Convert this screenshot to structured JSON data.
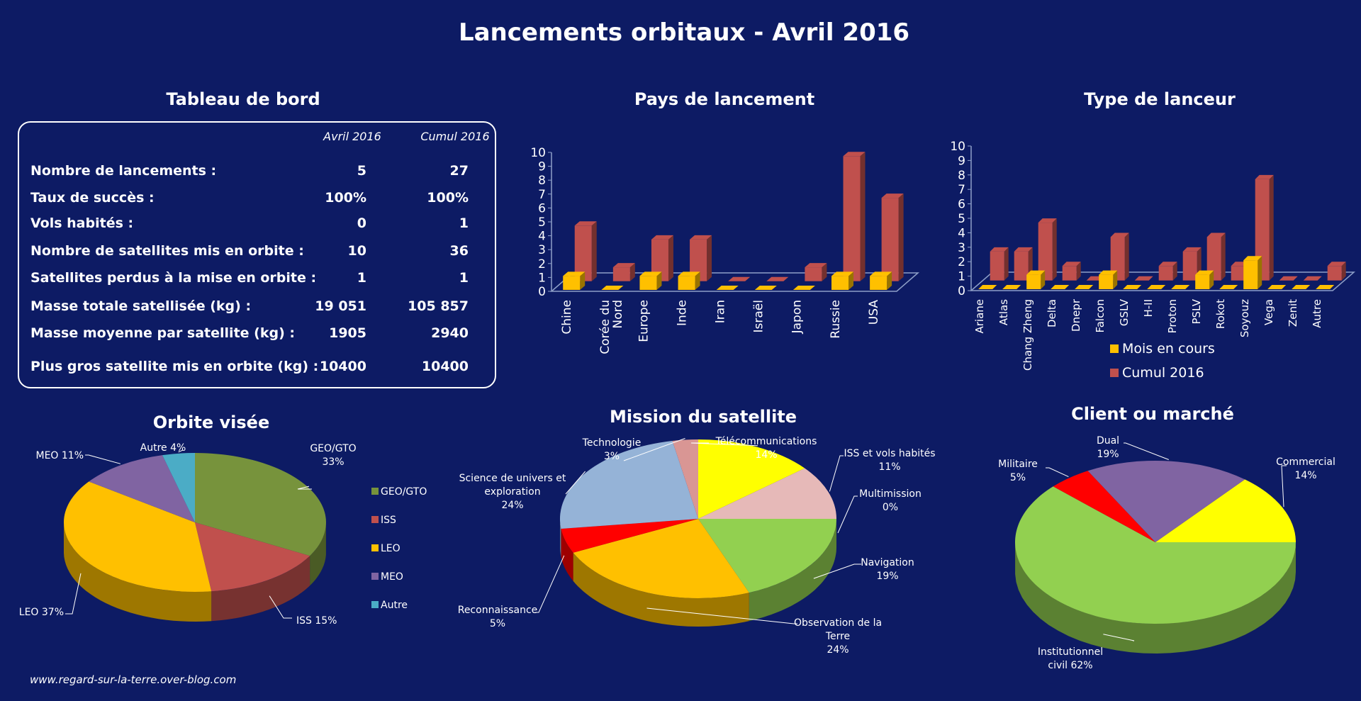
{
  "title": "Lancements orbitaux - Avril 2016",
  "footer": "www.regard-sur-la-terre.over-blog.com",
  "dashboard": {
    "title": "Tableau de bord",
    "col1": "Avril 2016",
    "col2": "Cumul 2016",
    "rows": [
      {
        "label": "Nombre de lancements :",
        "v1": "5",
        "v2": "27"
      },
      {
        "label": "Taux de succès :",
        "v1": "100%",
        "v2": "100%"
      },
      {
        "label": "Vols habités :",
        "v1": "0",
        "v2": "1"
      },
      {
        "label": "Nombre de satellites mis en orbite :",
        "v1": "10",
        "v2": "36"
      },
      {
        "label": "Satellites perdus à la mise en orbite :",
        "v1": "1",
        "v2": "1"
      },
      {
        "label": "Masse totale satellisée (kg) :",
        "v1": "19 051",
        "v2": "105 857"
      },
      {
        "label": "Masse moyenne par satellite (kg) :",
        "v1": "1905",
        "v2": "2940"
      },
      {
        "label": "Plus gros satellite mis en orbite (kg) :",
        "v1": "10400",
        "v2": "10400"
      }
    ]
  },
  "colors": {
    "background": "#0d1b64",
    "month": "#ffc000",
    "cumul": "#c0504d"
  },
  "chart_data": [
    {
      "id": "pays",
      "type": "bar",
      "title": "Pays de lancement",
      "categories": [
        "Chine",
        "Corée du Nord",
        "Europe",
        "Inde",
        "Iran",
        "Israël",
        "Japon",
        "Russie",
        "USA"
      ],
      "series": [
        {
          "name": "Mois en cours",
          "values": [
            1,
            0,
            1,
            1,
            0,
            0,
            0,
            1,
            1
          ]
        },
        {
          "name": "Cumul 2016",
          "values": [
            4,
            1,
            3,
            3,
            0,
            0,
            1,
            9,
            6
          ]
        }
      ],
      "ylim": [
        0,
        10
      ],
      "yticks": [
        "0",
        "1",
        "2",
        "3",
        "4",
        "5",
        "6",
        "7",
        "8",
        "9",
        "10"
      ]
    },
    {
      "id": "lanceur",
      "type": "bar",
      "title": "Type de lanceur",
      "categories": [
        "Ariane",
        "Atlas",
        "Chang Zheng",
        "Delta",
        "Dnepr",
        "Falcon",
        "GSLV",
        "H-II",
        "Proton",
        "PSLV",
        "Rokot",
        "Soyouz",
        "Vega",
        "Zenit",
        "Autre"
      ],
      "series": [
        {
          "name": "Mois en cours",
          "values": [
            0,
            0,
            1,
            0,
            0,
            1,
            0,
            0,
            0,
            1,
            0,
            2,
            0,
            0,
            0
          ]
        },
        {
          "name": "Cumul 2016",
          "values": [
            2,
            2,
            4,
            1,
            0,
            3,
            0,
            1,
            2,
            3,
            1,
            7,
            0,
            0,
            1
          ]
        }
      ],
      "ylim": [
        0,
        10
      ],
      "yticks": [
        "0",
        "1",
        "2",
        "3",
        "4",
        "5",
        "6",
        "7",
        "8",
        "9",
        "10"
      ],
      "legend": [
        "Mois en cours",
        "Cumul 2016"
      ]
    },
    {
      "id": "orbite",
      "type": "pie",
      "title": "Orbite visée",
      "slices": [
        {
          "name": "GEO/GTO",
          "value": 33,
          "label": "GEO/GTO 33%",
          "color": "#77933c"
        },
        {
          "name": "ISS",
          "value": 15,
          "label": "ISS 15%",
          "color": "#c0504d"
        },
        {
          "name": "LEO",
          "value": 37,
          "label": "LEO 37%",
          "color": "#ffc000"
        },
        {
          "name": "MEO",
          "value": 11,
          "label": "MEO 11%",
          "color": "#8064a2"
        },
        {
          "name": "Autre",
          "value": 4,
          "label": "Autre 4%",
          "color": "#4bacc6"
        }
      ],
      "legend": [
        "GEO/GTO",
        "ISS",
        "LEO",
        "MEO",
        "Autre"
      ]
    },
    {
      "id": "mission",
      "type": "pie",
      "title": "Mission du satellite",
      "slices": [
        {
          "name": "Télécommunications",
          "value": 14,
          "label": "Télécommunications 14%",
          "color": "#ffff00"
        },
        {
          "name": "ISS et vols habités",
          "value": 11,
          "label": "ISS et vols habités 11%",
          "color": "#e6b9b8"
        },
        {
          "name": "Multimission",
          "value": 0,
          "label": "Multimission 0%",
          "color": "#92d050"
        },
        {
          "name": "Navigation",
          "value": 19,
          "label": "Navigation 19%",
          "color": "#92d050"
        },
        {
          "name": "Observation de la Terre",
          "value": 24,
          "label": "Observation de la Terre 24%",
          "color": "#ffc000"
        },
        {
          "name": "Reconnaissance",
          "value": 5,
          "label": "Reconnaissance 5%",
          "color": "#ff0000"
        },
        {
          "name": "Science de univers et exploration",
          "value": 24,
          "label": "Science de univers et exploration 24%",
          "color": "#95b3d7"
        },
        {
          "name": "Technologie",
          "value": 3,
          "label": "Technologie 3%",
          "color": "#d99694"
        }
      ]
    },
    {
      "id": "client",
      "type": "pie",
      "title": "Client ou marché",
      "slices": [
        {
          "name": "Commercial",
          "value": 14,
          "label": "Commercial 14%",
          "color": "#ffff00"
        },
        {
          "name": "Institutionnel civil",
          "value": 62,
          "label": "Institutionnel civil 62%",
          "color": "#92d050"
        },
        {
          "name": "Militaire",
          "value": 5,
          "label": "Militaire 5%",
          "color": "#ff0000"
        },
        {
          "name": "Dual",
          "value": 19,
          "label": "Dual 19%",
          "color": "#8064a2"
        }
      ]
    }
  ]
}
